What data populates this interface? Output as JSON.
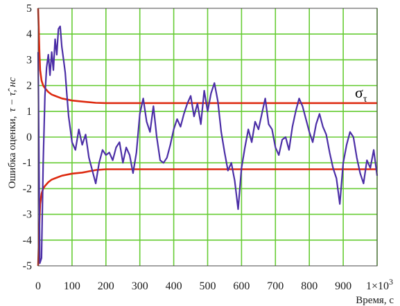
{
  "chart_data": {
    "type": "line",
    "xlabel": "Время, с",
    "ylabel": "Ошибка оценки,",
    "ylabel_math": "τ − τ̂, нс",
    "x_multiplier_label": "1×10",
    "x_multiplier_exp": "3",
    "xlim": [
      0,
      1000
    ],
    "ylim": [
      -5,
      5
    ],
    "grid": true,
    "grid_color": "#66cc33",
    "x_ticks": [
      0,
      100,
      200,
      300,
      400,
      500,
      600,
      700,
      800,
      900
    ],
    "x_tick_labels": [
      "0",
      "100",
      "200",
      "300",
      "400",
      "500",
      "600",
      "700",
      "800",
      "900"
    ],
    "y_ticks": [
      -5,
      -4,
      -3,
      -2,
      -1,
      0,
      1,
      2,
      3,
      4,
      5
    ],
    "y_tick_labels": [
      "-5",
      "-4",
      "-3",
      "-2",
      "-1",
      "0",
      "1",
      "2",
      "3",
      "4",
      "5"
    ],
    "annotation": "σ",
    "annotation_sub": "τ",
    "series": [
      {
        "color": "#dd2a10",
        "x": [
          0,
          2,
          4,
          6,
          10,
          15,
          20,
          30,
          40,
          50,
          70,
          100,
          130,
          170,
          200,
          300,
          400,
          500,
          600,
          700,
          800,
          900,
          1000
        ],
        "y": [
          5.0,
          4.1,
          3.2,
          2.6,
          2.2,
          2.0,
          1.9,
          1.75,
          1.65,
          1.6,
          1.5,
          1.42,
          1.38,
          1.33,
          1.32,
          1.32,
          1.32,
          1.32,
          1.32,
          1.32,
          1.32,
          1.32,
          1.32
        ]
      },
      {
        "color": "#dd2a10",
        "x": [
          0,
          2,
          4,
          6,
          10,
          15,
          20,
          30,
          40,
          50,
          70,
          100,
          130,
          170,
          200,
          300,
          400,
          500,
          600,
          700,
          800,
          900,
          1000
        ],
        "y": [
          -5.0,
          -4.1,
          -3.2,
          -2.6,
          -2.2,
          -2.0,
          -1.9,
          -1.75,
          -1.65,
          -1.6,
          -1.5,
          -1.42,
          -1.38,
          -1.28,
          -1.25,
          -1.25,
          -1.25,
          -1.25,
          -1.25,
          -1.25,
          -1.25,
          -1.25,
          -1.25
        ]
      },
      {
        "color": "#4b2ea6",
        "x": [
          0,
          5,
          10,
          15,
          20,
          25,
          30,
          35,
          40,
          45,
          50,
          55,
          60,
          65,
          70,
          75,
          80,
          85,
          90,
          95,
          100,
          110,
          120,
          130,
          140,
          150,
          160,
          170,
          180,
          190,
          200,
          210,
          220,
          230,
          240,
          250,
          260,
          270,
          280,
          290,
          300,
          310,
          320,
          330,
          340,
          350,
          360,
          370,
          380,
          390,
          400,
          410,
          420,
          430,
          440,
          450,
          460,
          470,
          480,
          490,
          500,
          510,
          520,
          530,
          540,
          550,
          560,
          570,
          580,
          590,
          600,
          610,
          620,
          630,
          640,
          650,
          660,
          670,
          680,
          690,
          700,
          710,
          720,
          730,
          740,
          750,
          760,
          770,
          780,
          790,
          800,
          810,
          820,
          830,
          840,
          850,
          860,
          870,
          880,
          890,
          900,
          910,
          920,
          930,
          940,
          950,
          960,
          970,
          980,
          990,
          1000
        ],
        "y": [
          3.3,
          -4.9,
          -4.7,
          -1.0,
          1.6,
          2.7,
          3.2,
          2.4,
          3.3,
          2.6,
          3.8,
          3.2,
          4.2,
          4.3,
          3.5,
          3.0,
          2.5,
          1.6,
          0.8,
          0.3,
          -0.2,
          -0.5,
          0.3,
          -0.3,
          0.1,
          -0.8,
          -1.3,
          -1.8,
          -1.0,
          -0.5,
          -0.7,
          -0.6,
          -0.9,
          -0.4,
          -0.2,
          -1.0,
          -0.4,
          -0.7,
          -1.4,
          -0.6,
          0.9,
          1.5,
          0.6,
          0.2,
          1.2,
          0.0,
          -0.9,
          -1.0,
          -0.8,
          -0.3,
          0.3,
          0.7,
          0.4,
          0.9,
          1.3,
          1.6,
          0.8,
          1.3,
          0.5,
          1.8,
          1.0,
          1.7,
          2.1,
          1.4,
          0.2,
          -0.6,
          -1.3,
          -1.0,
          -1.7,
          -2.8,
          -1.2,
          -0.4,
          0.3,
          -0.2,
          0.6,
          0.3,
          0.9,
          1.5,
          0.5,
          0.3,
          -0.4,
          -0.7,
          -0.1,
          0.0,
          -0.5,
          0.4,
          1.0,
          1.5,
          1.2,
          0.7,
          0.2,
          -0.2,
          0.5,
          0.9,
          0.4,
          0.1,
          -0.6,
          -1.2,
          -1.6,
          -2.6,
          -1.0,
          -0.3,
          0.2,
          0.0,
          -0.8,
          -1.4,
          -1.8,
          -0.9,
          -1.2,
          -0.5,
          -1.5
        ]
      }
    ]
  }
}
